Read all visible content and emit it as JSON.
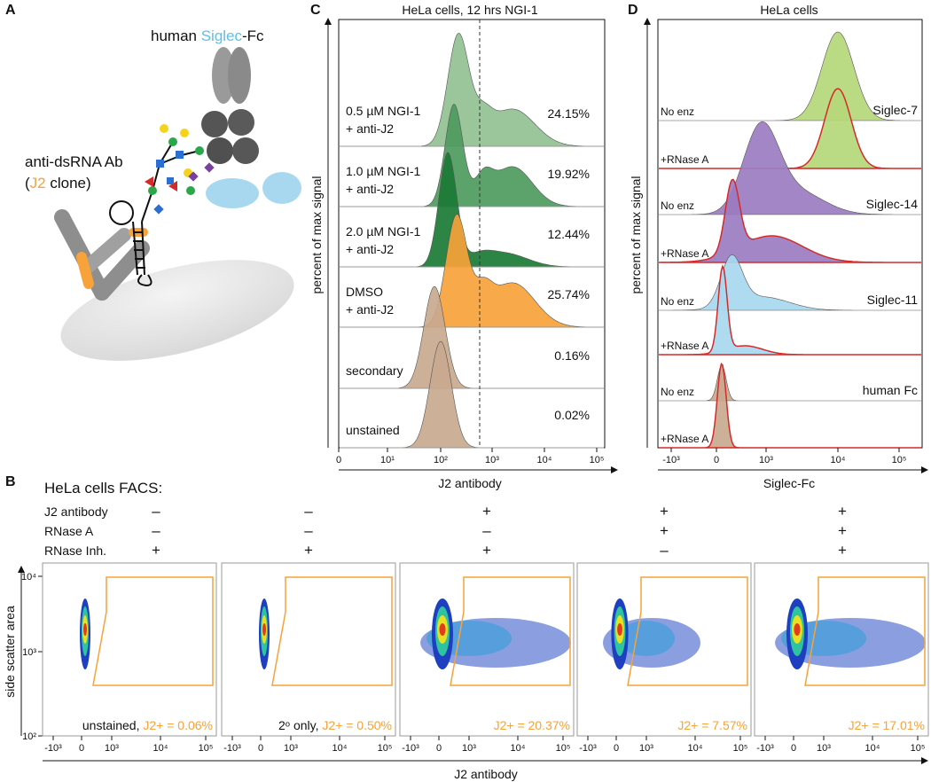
{
  "panel_a": {
    "letter": "A",
    "siglec_label": [
      "human ",
      "Siglec",
      "-Fc"
    ],
    "antibody_label": [
      "anti-dsRNA Ab",
      "(",
      "J2",
      " clone)"
    ]
  },
  "panel_c": {
    "letter": "C",
    "title": "HeLa cells, 12 hrs NGI-1",
    "y_label": "percent of max signal",
    "x_label": "J2 antibody",
    "x_ticks": [
      "0",
      "10¹",
      "10²",
      "10³",
      "10⁴",
      "10⁵"
    ],
    "rows": [
      {
        "label": [
          "0.5 µM NGI-1",
          "+ anti-J2"
        ],
        "percent": "24.15%"
      },
      {
        "label": [
          "1.0 µM NGI-1",
          "+ anti-J2"
        ],
        "percent": "19.92%"
      },
      {
        "label": [
          "2.0 µM NGI-1",
          "+ anti-J2"
        ],
        "percent": "12.44%"
      },
      {
        "label": [
          "DMSO",
          "+ anti-J2"
        ],
        "percent": "25.74%"
      },
      {
        "label": [
          "secondary"
        ],
        "percent": "0.16%"
      },
      {
        "label": [
          "unstained"
        ],
        "percent": "0.02%"
      }
    ]
  },
  "panel_d": {
    "letter": "D",
    "title": "HeLa cells",
    "y_label": "percent of max signal",
    "x_label": "Siglec-Fc",
    "x_ticks": [
      "-10³",
      "0",
      "10³",
      "10⁴",
      "10⁵"
    ],
    "groups": [
      {
        "name": "Siglec-7",
        "rows": [
          "No enz",
          "+RNase A"
        ]
      },
      {
        "name": "Siglec-14",
        "rows": [
          "No enz",
          "+RNase A"
        ]
      },
      {
        "name": "Siglec-11",
        "rows": [
          "No enz",
          "+RNase A"
        ]
      },
      {
        "name": "human Fc",
        "rows": [
          "No enz",
          "+RNase A"
        ]
      }
    ]
  },
  "panel_b": {
    "letter": "B",
    "title": "HeLa cells FACS:",
    "conditions": [
      {
        "name": "J2 antibody",
        "signs": [
          "–",
          "–",
          "+",
          "+",
          "+"
        ]
      },
      {
        "name": "RNase A",
        "signs": [
          "–",
          "–",
          "–",
          "+",
          "+"
        ]
      },
      {
        "name": "RNase Inh.",
        "signs": [
          "+",
          "+",
          "+",
          "–",
          "+"
        ]
      }
    ],
    "y_label": "side scatter area",
    "y_ticks": [
      "10⁴",
      "10³",
      "10²"
    ],
    "x_ticks": [
      "-10³",
      "0",
      "10³",
      "10⁴",
      "10⁵"
    ],
    "x_label": "J2 antibody",
    "plots": [
      {
        "caption": [
          "unstained, ",
          "J2+ = 0.06%"
        ]
      },
      {
        "caption": [
          "2ᵒ only, ",
          "J2+ = 0.50%"
        ]
      },
      {
        "caption": [
          "",
          "J2+ = 20.37%"
        ]
      },
      {
        "caption": [
          "",
          "J2+ = 7.57%"
        ]
      },
      {
        "caption": [
          "",
          "J2+ = 17.01%"
        ]
      }
    ]
  }
}
